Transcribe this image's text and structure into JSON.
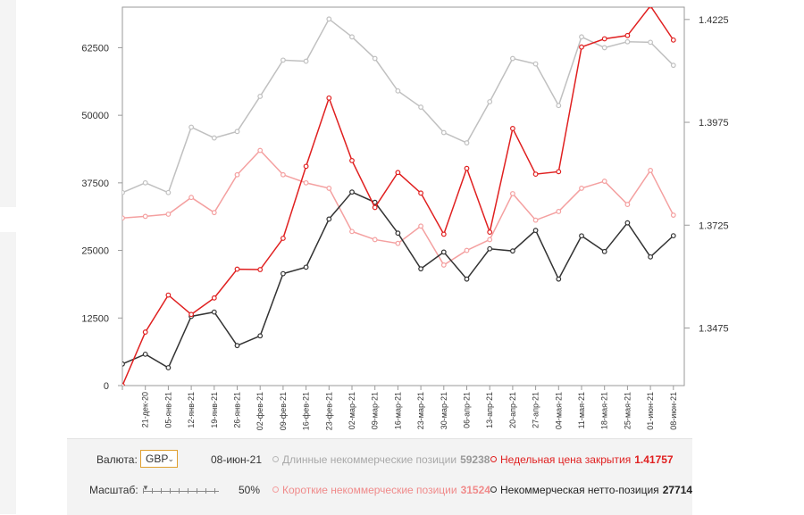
{
  "chart_data": {
    "type": "line",
    "categories": [
      "",
      "21-дек-20",
      "05-янв-21",
      "12-янв-21",
      "19-янв-21",
      "26-янв-21",
      "02-фев-21",
      "09-фев-21",
      "16-фев-21",
      "23-фев-21",
      "02-мар-21",
      "09-мар-21",
      "16-мар-21",
      "23-мар-21",
      "30-мар-21",
      "06-апр-21",
      "13-апр-21",
      "20-апр-21",
      "27-апр-21",
      "04-мая-21",
      "11-мая-21",
      "18-мая-21",
      "25-мая-21",
      "01-июн-21",
      "08-июн-21"
    ],
    "y_left": {
      "ticks": [
        "0",
        "12500",
        "25000",
        "37500",
        "50000",
        "62500"
      ],
      "range": [
        0,
        70000
      ]
    },
    "y_right": {
      "ticks": [
        "1.3475",
        "1.3725",
        "1.3975",
        "1.4225"
      ],
      "range": [
        1.3335,
        1.4255
      ]
    },
    "series": [
      {
        "key": "long",
        "axis": "left",
        "color": "#c0c0c0",
        "values": [
          35700,
          37500,
          35700,
          47800,
          45800,
          47000,
          53500,
          60200,
          60000,
          67800,
          64500,
          60500,
          54500,
          51500,
          46800,
          44900,
          52500,
          60500,
          59500,
          51800,
          64500,
          62500,
          63600,
          63500,
          59238
        ]
      },
      {
        "key": "short",
        "axis": "left",
        "color": "#f4a0a0",
        "values": [
          31000,
          31300,
          31700,
          34800,
          32000,
          39000,
          43500,
          39000,
          37500,
          36500,
          28500,
          27000,
          26300,
          29500,
          22300,
          25000,
          27000,
          35500,
          30600,
          32200,
          36500,
          37800,
          33500,
          39800,
          31524
        ]
      },
      {
        "key": "net",
        "axis": "left",
        "color": "#333333",
        "values": [
          4000,
          5800,
          3300,
          12800,
          13600,
          7400,
          9200,
          20700,
          21900,
          30800,
          35800,
          33900,
          28200,
          21600,
          24700,
          19700,
          25300,
          24900,
          28700,
          19700,
          27700,
          24800,
          30100,
          23800,
          27714
        ]
      },
      {
        "key": "price",
        "axis": "right",
        "color": "#e02020",
        "values": [
          1.3335,
          1.3465,
          1.3555,
          1.3508,
          1.3548,
          1.3618,
          1.3617,
          1.3693,
          1.3868,
          1.4034,
          1.3882,
          1.3768,
          1.3853,
          1.3803,
          1.3703,
          1.3863,
          1.3708,
          1.396,
          1.3849,
          1.3855,
          1.4158,
          1.4178,
          1.4186,
          1.4258,
          1.4175
        ]
      }
    ]
  },
  "controls": {
    "currency_label": "Валюта:",
    "currency_value": "GBP",
    "date": "08-июн-21",
    "scale_label": "Масштаб:",
    "scale_value": "50%",
    "legend": [
      {
        "color": "#b8b8b8",
        "label": "Длинные некоммерческие позиции",
        "value": "59238",
        "label_color": "#a8a8a8"
      },
      {
        "color": "#f4a0a0",
        "label": "Короткие некоммерческие позиции",
        "value": "31524",
        "label_color": "#f08a8a"
      },
      {
        "color": "#e02020",
        "label": "Недельная цена закрытия",
        "value": "1.41757",
        "label_color": "#e02020"
      },
      {
        "color": "#333333",
        "label": "Некоммерческая нетто-позиция",
        "value": "27714",
        "label_color": "#222222"
      }
    ]
  }
}
